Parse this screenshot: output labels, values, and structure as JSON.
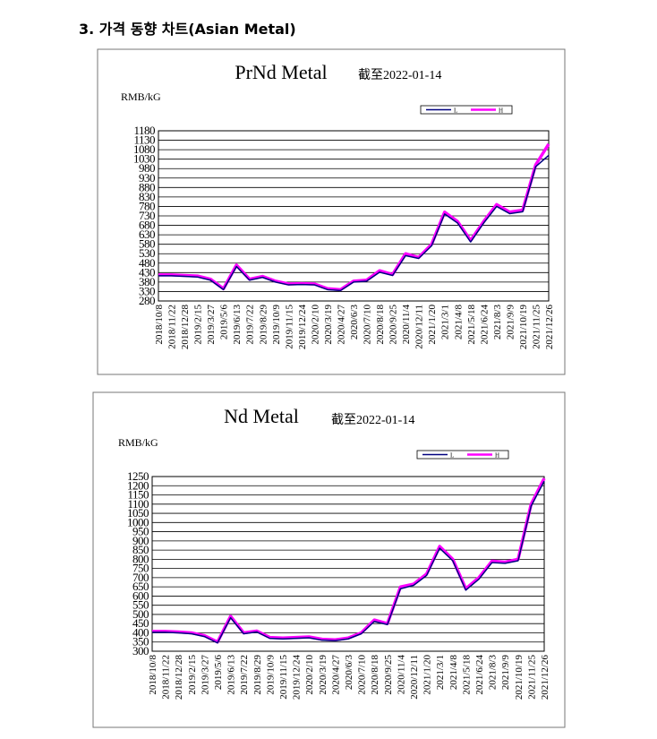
{
  "heading": "3. 가격 동향 차트(Asian Metal)",
  "chart_data": [
    {
      "type": "line",
      "title": "PrNd Metal",
      "subtitle": "截至2022-01-14",
      "y_label": "RMB/kG",
      "categories": [
        "2018/10/8",
        "2018/11/22",
        "2018/12/28",
        "2019/2/15",
        "2019/3/27",
        "2019/5/6",
        "2019/6/13",
        "2019/7/22",
        "2019/8/29",
        "2019/10/9",
        "2019/11/15",
        "2019/12/24",
        "2020/2/10",
        "2020/3/19",
        "2020/4/27",
        "2020/6/3",
        "2020/7/10",
        "2020/8/18",
        "2020/9/25",
        "2020/11/4",
        "2020/12/11",
        "2021/1/20",
        "2021/3/1",
        "2021/4/8",
        "2021/5/18",
        "2021/6/24",
        "2021/8/3",
        "2021/9/9",
        "2021/10/19",
        "2021/11/25",
        "2021/12/26"
      ],
      "series": [
        {
          "name": "L",
          "color": "#000080",
          "values": [
            413,
            413,
            410,
            407,
            390,
            340,
            462,
            390,
            405,
            380,
            365,
            367,
            365,
            340,
            335,
            380,
            385,
            432,
            415,
            520,
            505,
            572,
            740,
            692,
            592,
            692,
            780,
            742,
            752,
            990,
            1050
          ]
        },
        {
          "name": "H",
          "color": "#ff00ff",
          "values": [
            418,
            418,
            415,
            412,
            395,
            345,
            470,
            395,
            410,
            385,
            370,
            372,
            370,
            345,
            340,
            385,
            390,
            440,
            420,
            530,
            510,
            580,
            750,
            700,
            600,
            700,
            790,
            750,
            760,
            1000,
            1110
          ]
        }
      ],
      "ylim": [
        280,
        1180
      ],
      "yticks": [
        280,
        330,
        380,
        430,
        480,
        530,
        580,
        630,
        680,
        730,
        780,
        830,
        880,
        930,
        980,
        1030,
        1080,
        1130,
        1180
      ],
      "grid": true
    },
    {
      "type": "line",
      "title": "Nd Metal",
      "subtitle": "截至2022-01-14",
      "y_label": "RMB/kG",
      "categories": [
        "2018/10/8",
        "2018/11/22",
        "2018/12/28",
        "2019/2/15",
        "2019/3/27",
        "2019/5/6",
        "2019/6/13",
        "2019/7/22",
        "2019/8/29",
        "2019/10/9",
        "2019/11/15",
        "2019/12/24",
        "2020/2/10",
        "2020/3/19",
        "2020/4/27",
        "2020/6/3",
        "2020/7/10",
        "2020/8/18",
        "2020/9/25",
        "2020/11/4",
        "2020/12/11",
        "2021/1/20",
        "2021/3/1",
        "2021/4/8",
        "2021/5/18",
        "2021/6/24",
        "2021/8/3",
        "2021/9/9",
        "2021/10/19",
        "2021/11/25",
        "2021/12/26"
      ],
      "series": [
        {
          "name": "L",
          "color": "#000080",
          "values": [
            403,
            403,
            400,
            395,
            380,
            345,
            482,
            395,
            405,
            370,
            367,
            370,
            373,
            360,
            357,
            367,
            395,
            462,
            445,
            640,
            658,
            712,
            860,
            792,
            632,
            692,
            782,
            778,
            792,
            1090,
            1225
          ]
        },
        {
          "name": "H",
          "color": "#ff00ff",
          "values": [
            408,
            408,
            405,
            400,
            385,
            350,
            490,
            400,
            410,
            375,
            372,
            375,
            378,
            365,
            362,
            372,
            400,
            470,
            450,
            650,
            665,
            720,
            870,
            800,
            640,
            700,
            790,
            785,
            800,
            1100,
            1240
          ]
        }
      ],
      "ylim": [
        300,
        1250
      ],
      "yticks": [
        300,
        350,
        400,
        450,
        500,
        550,
        600,
        650,
        700,
        750,
        800,
        850,
        900,
        950,
        1000,
        1050,
        1100,
        1150,
        1200,
        1250
      ],
      "grid": true
    }
  ]
}
